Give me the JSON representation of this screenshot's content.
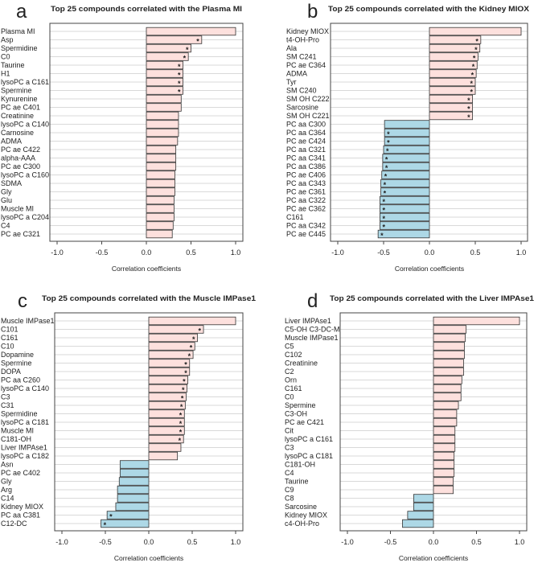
{
  "colors": {
    "positive": "#fde0dd",
    "negative": "#add8e6",
    "grid": "#d9d9d9",
    "bar_border": "#333333"
  },
  "chart_data": [
    {
      "type": "bar",
      "orientation": "horizontal",
      "panel_letter": "a",
      "title": "Top 25 compounds correlated with the Plasma MI",
      "xlabel": "Correlation coefficients",
      "xlim": [
        -1.0,
        1.0
      ],
      "xticks": [
        "-1.0",
        "-0.5",
        "0.0",
        "0.5",
        "1.0"
      ],
      "xtick_values": [
        -1,
        -0.5,
        0,
        0.5,
        1
      ],
      "categories": [
        "Plasma MI",
        "Asp",
        "Spermidine",
        "C0",
        "Taurine",
        "H1",
        "lysoPC a C161",
        "Spermine",
        "Kynurenine",
        "PC ae C401",
        "Creatinine",
        "lysoPC a C140",
        "Carnosine",
        "ADMA",
        "PC ae C422",
        "alpha-AAA",
        "PC ae C300",
        "lysoPC a C160",
        "SDMA",
        "Gly",
        "Glu",
        "Muscle MI",
        "lysoPC a C204",
        "C4",
        "PC ae C321"
      ],
      "values": [
        1.0,
        0.62,
        0.5,
        0.47,
        0.41,
        0.41,
        0.41,
        0.41,
        0.39,
        0.39,
        0.36,
        0.36,
        0.36,
        0.35,
        0.33,
        0.33,
        0.33,
        0.32,
        0.32,
        0.32,
        0.31,
        0.31,
        0.31,
        0.3,
        0.29
      ],
      "significant": [
        false,
        true,
        true,
        true,
        true,
        true,
        true,
        true,
        false,
        false,
        false,
        false,
        false,
        false,
        false,
        false,
        false,
        false,
        false,
        false,
        false,
        false,
        false,
        false,
        false
      ],
      "significance_marker": "*"
    },
    {
      "type": "bar",
      "orientation": "horizontal",
      "panel_letter": "b",
      "title": "Top 25 compounds correlated with the Kidney MIOX",
      "xlabel": "Correlation coefficients",
      "xlim": [
        -1.0,
        1.0
      ],
      "xticks": [
        "-1.0",
        "-0.5",
        "0.0",
        "0.5",
        "1.0"
      ],
      "xtick_values": [
        -1,
        -0.5,
        0,
        0.5,
        1
      ],
      "categories": [
        "Kidney MIOX",
        "t4-OH-Pro",
        "Ala",
        "SM C241",
        "PC ae C364",
        "ADMA",
        "Tyr",
        "SM C240",
        "SM OH C222",
        "Sarcosine",
        "SM OH C221",
        "PC aa C300",
        "PC aa C364",
        "PC ae C424",
        "PC aa C321",
        "PC aa C341",
        "PC aa C386",
        "PC ae C406",
        "PC aa C343",
        "PC ae C361",
        "PC aa C322",
        "PC ae C362",
        "C161",
        "PC aa C342",
        "PC ae C445"
      ],
      "values": [
        1.0,
        0.56,
        0.55,
        0.53,
        0.52,
        0.51,
        0.5,
        0.5,
        0.47,
        0.47,
        0.47,
        -0.49,
        -0.49,
        -0.49,
        -0.5,
        -0.51,
        -0.51,
        -0.52,
        -0.53,
        -0.53,
        -0.54,
        -0.54,
        -0.54,
        -0.54,
        -0.56
      ],
      "significant": [
        false,
        true,
        true,
        true,
        true,
        true,
        true,
        true,
        true,
        true,
        true,
        false,
        true,
        true,
        true,
        true,
        true,
        true,
        true,
        true,
        true,
        true,
        true,
        true,
        true
      ],
      "significance_marker": "*"
    },
    {
      "type": "bar",
      "orientation": "horizontal",
      "panel_letter": "c",
      "title": "Top 25 compounds correlated with the Muscle IMPase1",
      "xlabel": "Correlation coefficients",
      "xlim": [
        -1.0,
        1.0
      ],
      "xticks": [
        "-1.0",
        "-0.5",
        "0.0",
        "0.5",
        "1.0"
      ],
      "xtick_values": [
        -1,
        -0.5,
        0,
        0.5,
        1
      ],
      "categories": [
        "Muscle IMPase1",
        "C101",
        "C161",
        "C10",
        "Dopamine",
        "Spermine",
        "DOPA",
        "PC aa C260",
        "lysoPC a C140",
        "C3",
        "C31",
        "Spermidine",
        "lysoPC a C181",
        "Muscle MI",
        "C181-OH",
        "Liver IMPAse1",
        "lysoPC a C182",
        "Asn",
        "PC ae C402",
        "Gly",
        "Arg",
        "C14",
        "Kidney MIOX",
        "PC aa C381",
        "C12-DC"
      ],
      "values": [
        1.0,
        0.63,
        0.56,
        0.53,
        0.51,
        0.47,
        0.47,
        0.45,
        0.44,
        0.43,
        0.42,
        0.41,
        0.41,
        0.41,
        0.4,
        0.37,
        0.33,
        -0.33,
        -0.33,
        -0.34,
        -0.36,
        -0.36,
        -0.38,
        -0.48,
        -0.55
      ],
      "significant": [
        false,
        true,
        true,
        true,
        true,
        true,
        true,
        true,
        true,
        true,
        true,
        true,
        true,
        true,
        true,
        false,
        false,
        false,
        false,
        false,
        false,
        false,
        false,
        true,
        true
      ],
      "significance_marker": "*"
    },
    {
      "type": "bar",
      "orientation": "horizontal",
      "panel_letter": "d",
      "title": "Top 25 compounds correlated with the Liver IMPAse1",
      "xlabel": "Correlation coefficients",
      "xlim": [
        -1.0,
        1.0
      ],
      "xticks": [
        "-1.0",
        "-0.5",
        "0.0",
        "0.5",
        "1.0"
      ],
      "xtick_values": [
        -1,
        -0.5,
        0,
        0.5,
        1
      ],
      "categories": [
        "Liver IMPAse1",
        "C5-OH C3-DC-M",
        "Muscle IMPase1",
        "C5",
        "C102",
        "Creatinine",
        "C2",
        "Orn",
        "C161",
        "C0",
        "Spermine",
        "C3-OH",
        "PC ae C421",
        "Cit",
        "lysoPC a C161",
        "C3",
        "lysoPC a C181",
        "C181-OH",
        "C4",
        "Taurine",
        "C9",
        "C8",
        "Sarcosine",
        "Kidney MIOX",
        "c4-OH-Pro"
      ],
      "values": [
        1.0,
        0.38,
        0.37,
        0.36,
        0.36,
        0.35,
        0.35,
        0.33,
        0.32,
        0.32,
        0.29,
        0.27,
        0.27,
        0.25,
        0.25,
        0.25,
        0.24,
        0.24,
        0.24,
        0.23,
        0.23,
        -0.23,
        -0.23,
        -0.3,
        -0.36
      ],
      "significant": [
        false,
        false,
        false,
        false,
        false,
        false,
        false,
        false,
        false,
        false,
        false,
        false,
        false,
        false,
        false,
        false,
        false,
        false,
        false,
        false,
        false,
        false,
        false,
        false,
        false
      ],
      "significance_marker": "*"
    }
  ]
}
